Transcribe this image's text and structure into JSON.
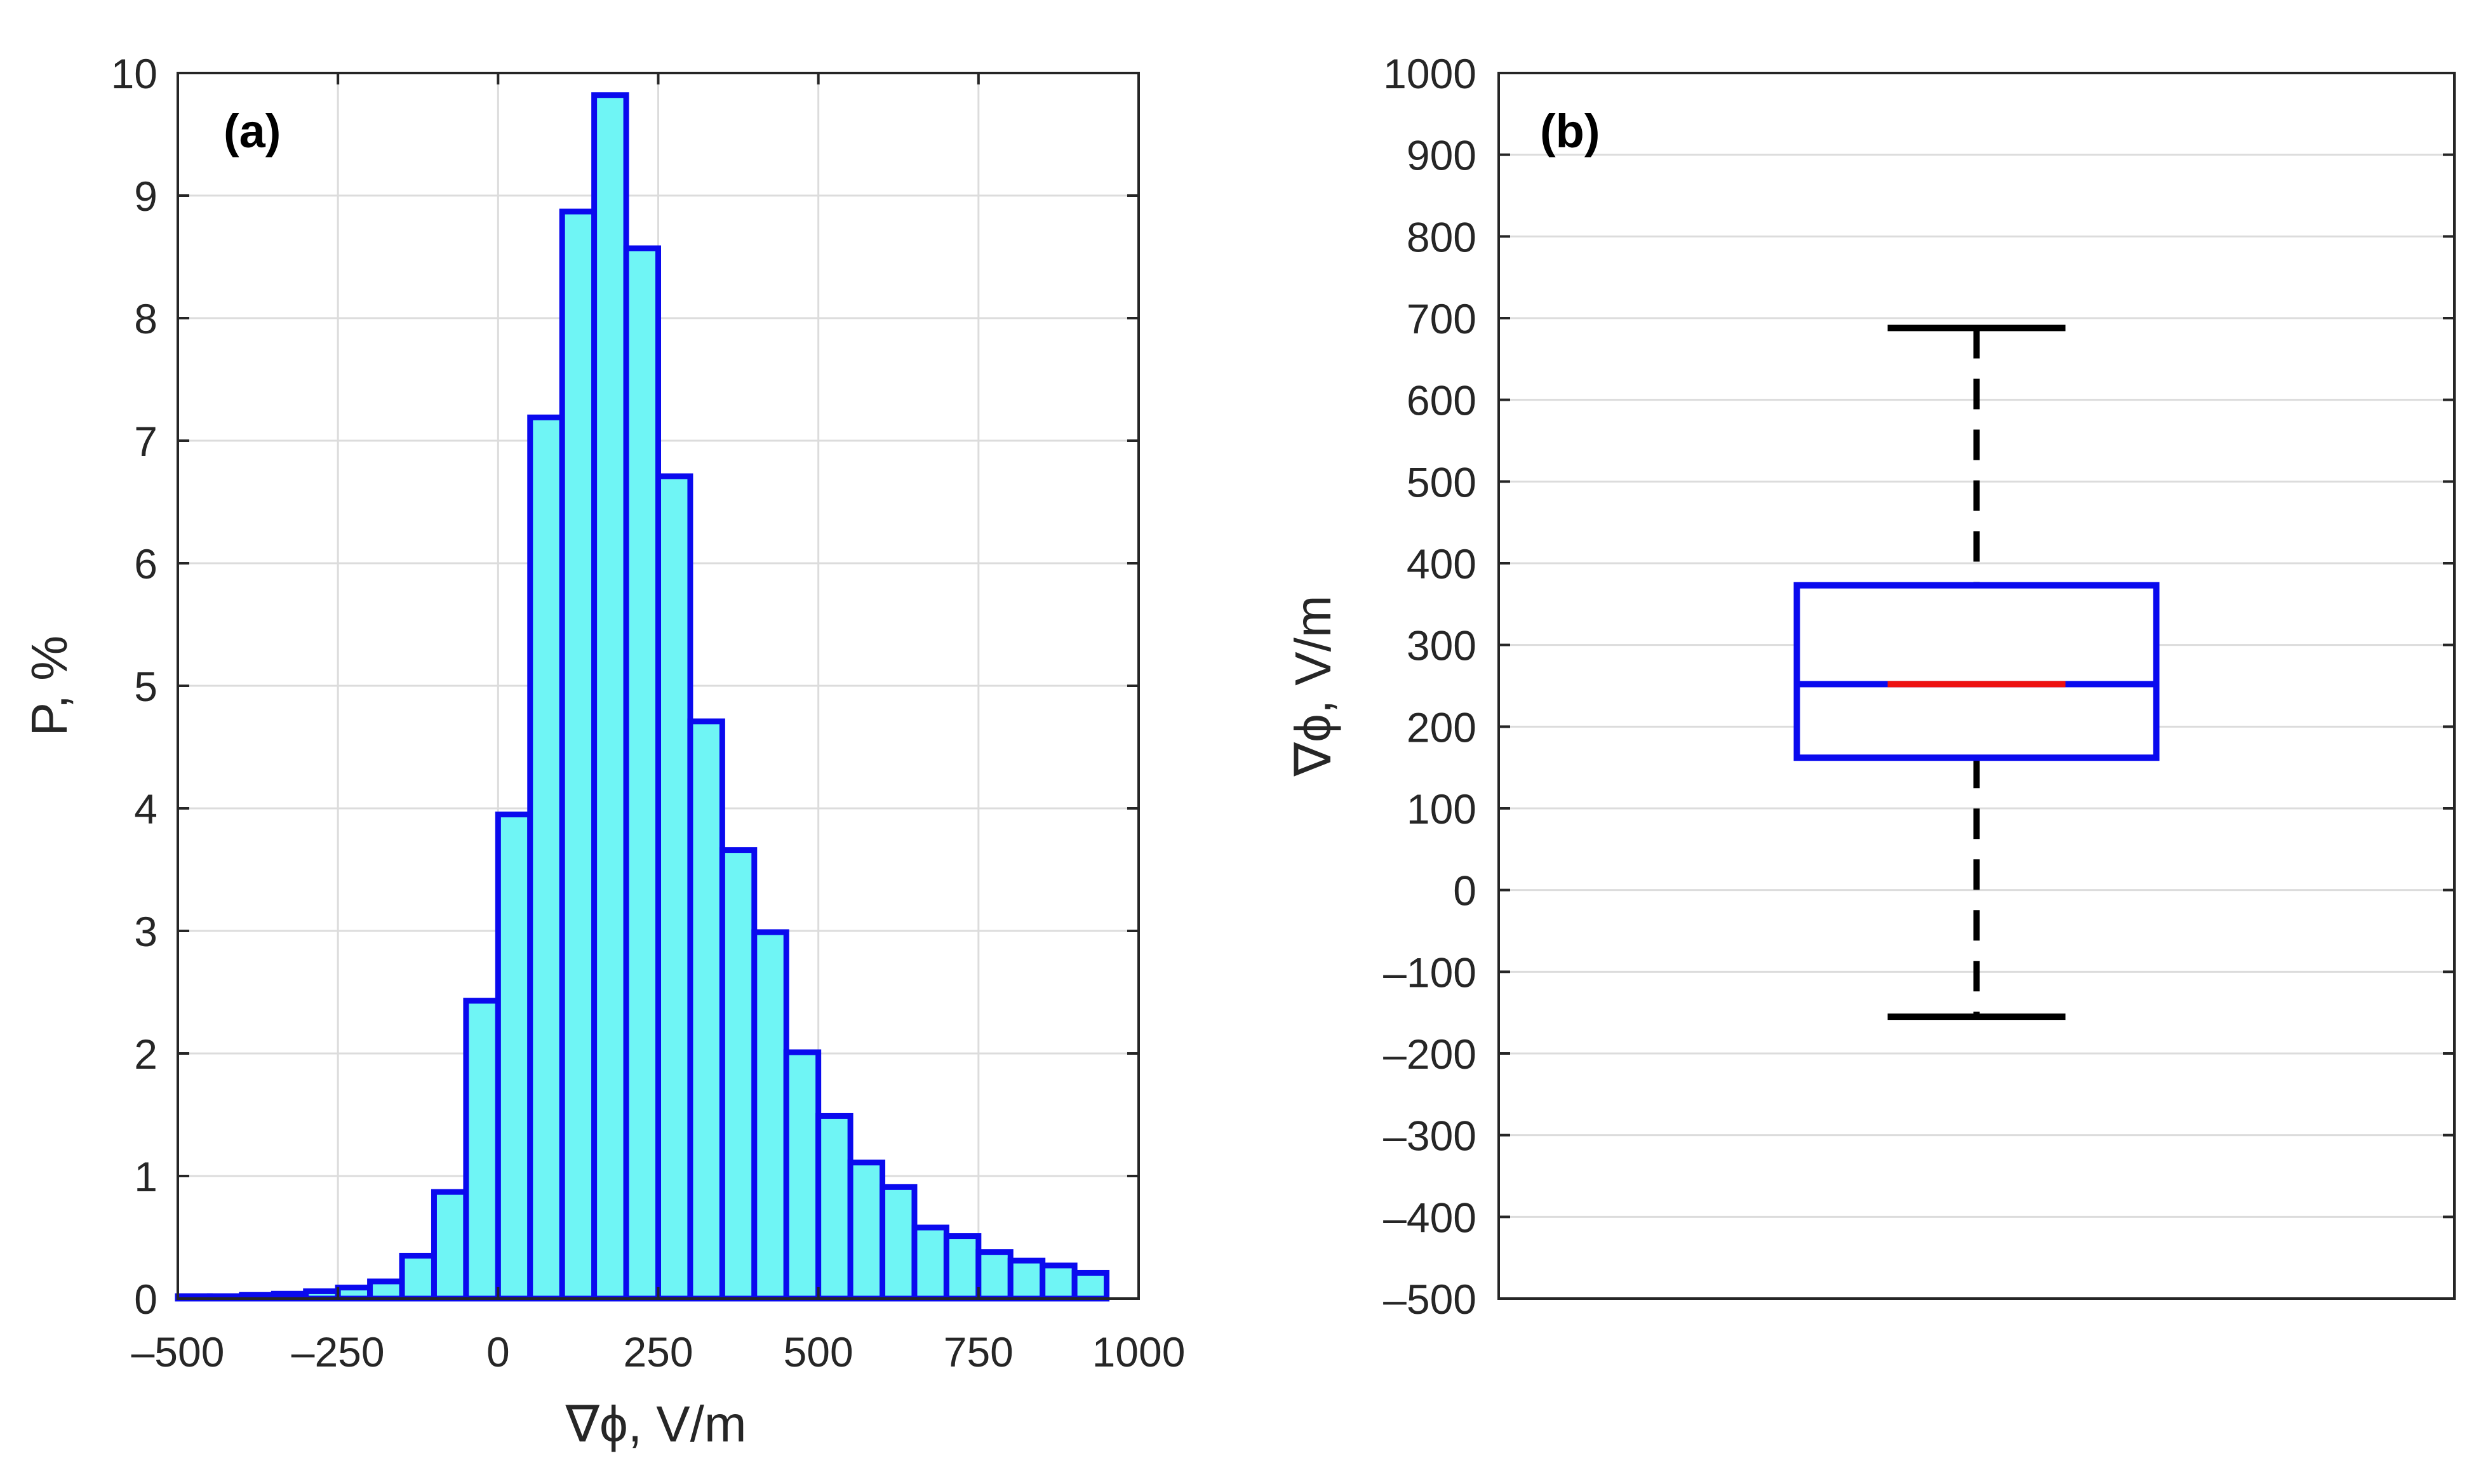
{
  "chart_data": [
    {
      "type": "bar",
      "panel_label": "(a)",
      "xlabel": "∇ϕ, V/m",
      "ylabel": "P, %",
      "xlim": [
        -500,
        1000
      ],
      "ylim": [
        0,
        10
      ],
      "xticks": [
        -500,
        -250,
        0,
        250,
        500,
        750,
        1000
      ],
      "xtick_labels": [
        "–500",
        "–250",
        "0",
        "250",
        "500",
        "750",
        "1000"
      ],
      "yticks": [
        0,
        1,
        2,
        3,
        4,
        5,
        6,
        7,
        8,
        9,
        10
      ],
      "ytick_labels": [
        "0",
        "1",
        "2",
        "3",
        "4",
        "5",
        "6",
        "7",
        "8",
        "9",
        "10"
      ],
      "grid": true,
      "bin_width": 50,
      "bin_edges_start": -500,
      "values": [
        0.02,
        0.02,
        0.03,
        0.04,
        0.06,
        0.09,
        0.14,
        0.35,
        0.87,
        2.43,
        3.95,
        7.19,
        8.87,
        9.82,
        8.57,
        6.71,
        4.71,
        3.66,
        2.99,
        2.01,
        1.49,
        1.11,
        0.91,
        0.58,
        0.51,
        0.38,
        0.31,
        0.27,
        0.21
      ],
      "colors": {
        "fill": "#6ff5f5",
        "edge": "#0a0aee"
      }
    },
    {
      "type": "box",
      "panel_label": "(b)",
      "ylabel": "∇ϕ, V/m",
      "ylim": [
        -500,
        1000
      ],
      "yticks": [
        -500,
        -400,
        -300,
        -200,
        -100,
        0,
        100,
        200,
        300,
        400,
        500,
        600,
        700,
        800,
        900,
        1000
      ],
      "ytick_labels": [
        "–500",
        "–400",
        "–300",
        "–200",
        "–100",
        "0",
        "100",
        "200",
        "300",
        "400",
        "500",
        "600",
        "700",
        "800",
        "900",
        "1000"
      ],
      "grid": true,
      "whisker_low": -155,
      "q1": 162,
      "median": 252,
      "q3": 373,
      "whisker_high": 688,
      "colors": {
        "box": "#0a0aee",
        "median": "#ee1010",
        "whisker": "#000000"
      }
    }
  ]
}
